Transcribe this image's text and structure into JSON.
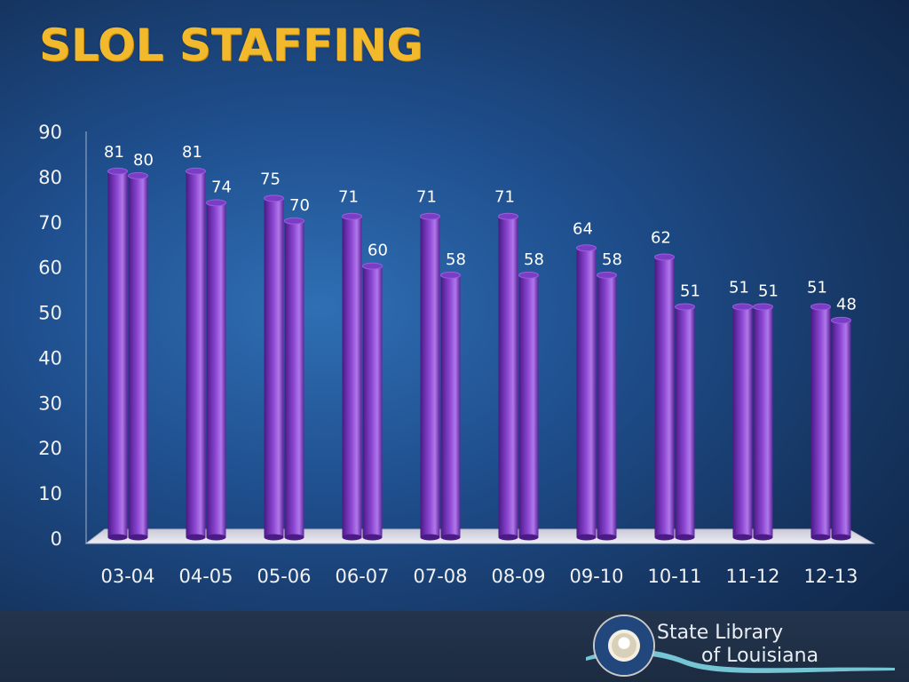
{
  "page": {
    "title": "SLOL STAFFING"
  },
  "logo": {
    "line1": "State Library",
    "line2": "of Louisiana",
    "seal_text": "STATE OF LOUISIANA · STATE LIBRARY OF LOUISIANA"
  },
  "colors": {
    "title": "#f2b92c",
    "bar_dark": "#4a1a85",
    "bar_mid": "#8a44d0",
    "bar_light": "#b077ea",
    "floor": "#d9d9e6",
    "label": "#ffffff",
    "axis_text": "#f2f2f2"
  },
  "chart_data": {
    "type": "bar",
    "title": "",
    "xlabel": "",
    "ylabel": "",
    "ylim": [
      0,
      90
    ],
    "yticks": [
      0,
      10,
      20,
      30,
      40,
      50,
      60,
      70,
      80,
      90
    ],
    "categories": [
      "03-04",
      "04-05",
      "05-06",
      "06-07",
      "07-08",
      "08-09",
      "09-10",
      "10-11",
      "11-12",
      "12-13"
    ],
    "series": [
      {
        "values": [
          81,
          81,
          75,
          71,
          71,
          71,
          64,
          62,
          51,
          51
        ]
      },
      {
        "values": [
          80,
          74,
          70,
          60,
          58,
          58,
          58,
          51,
          51,
          48
        ]
      }
    ],
    "data_labels": true,
    "grid": false,
    "legend": "none"
  }
}
